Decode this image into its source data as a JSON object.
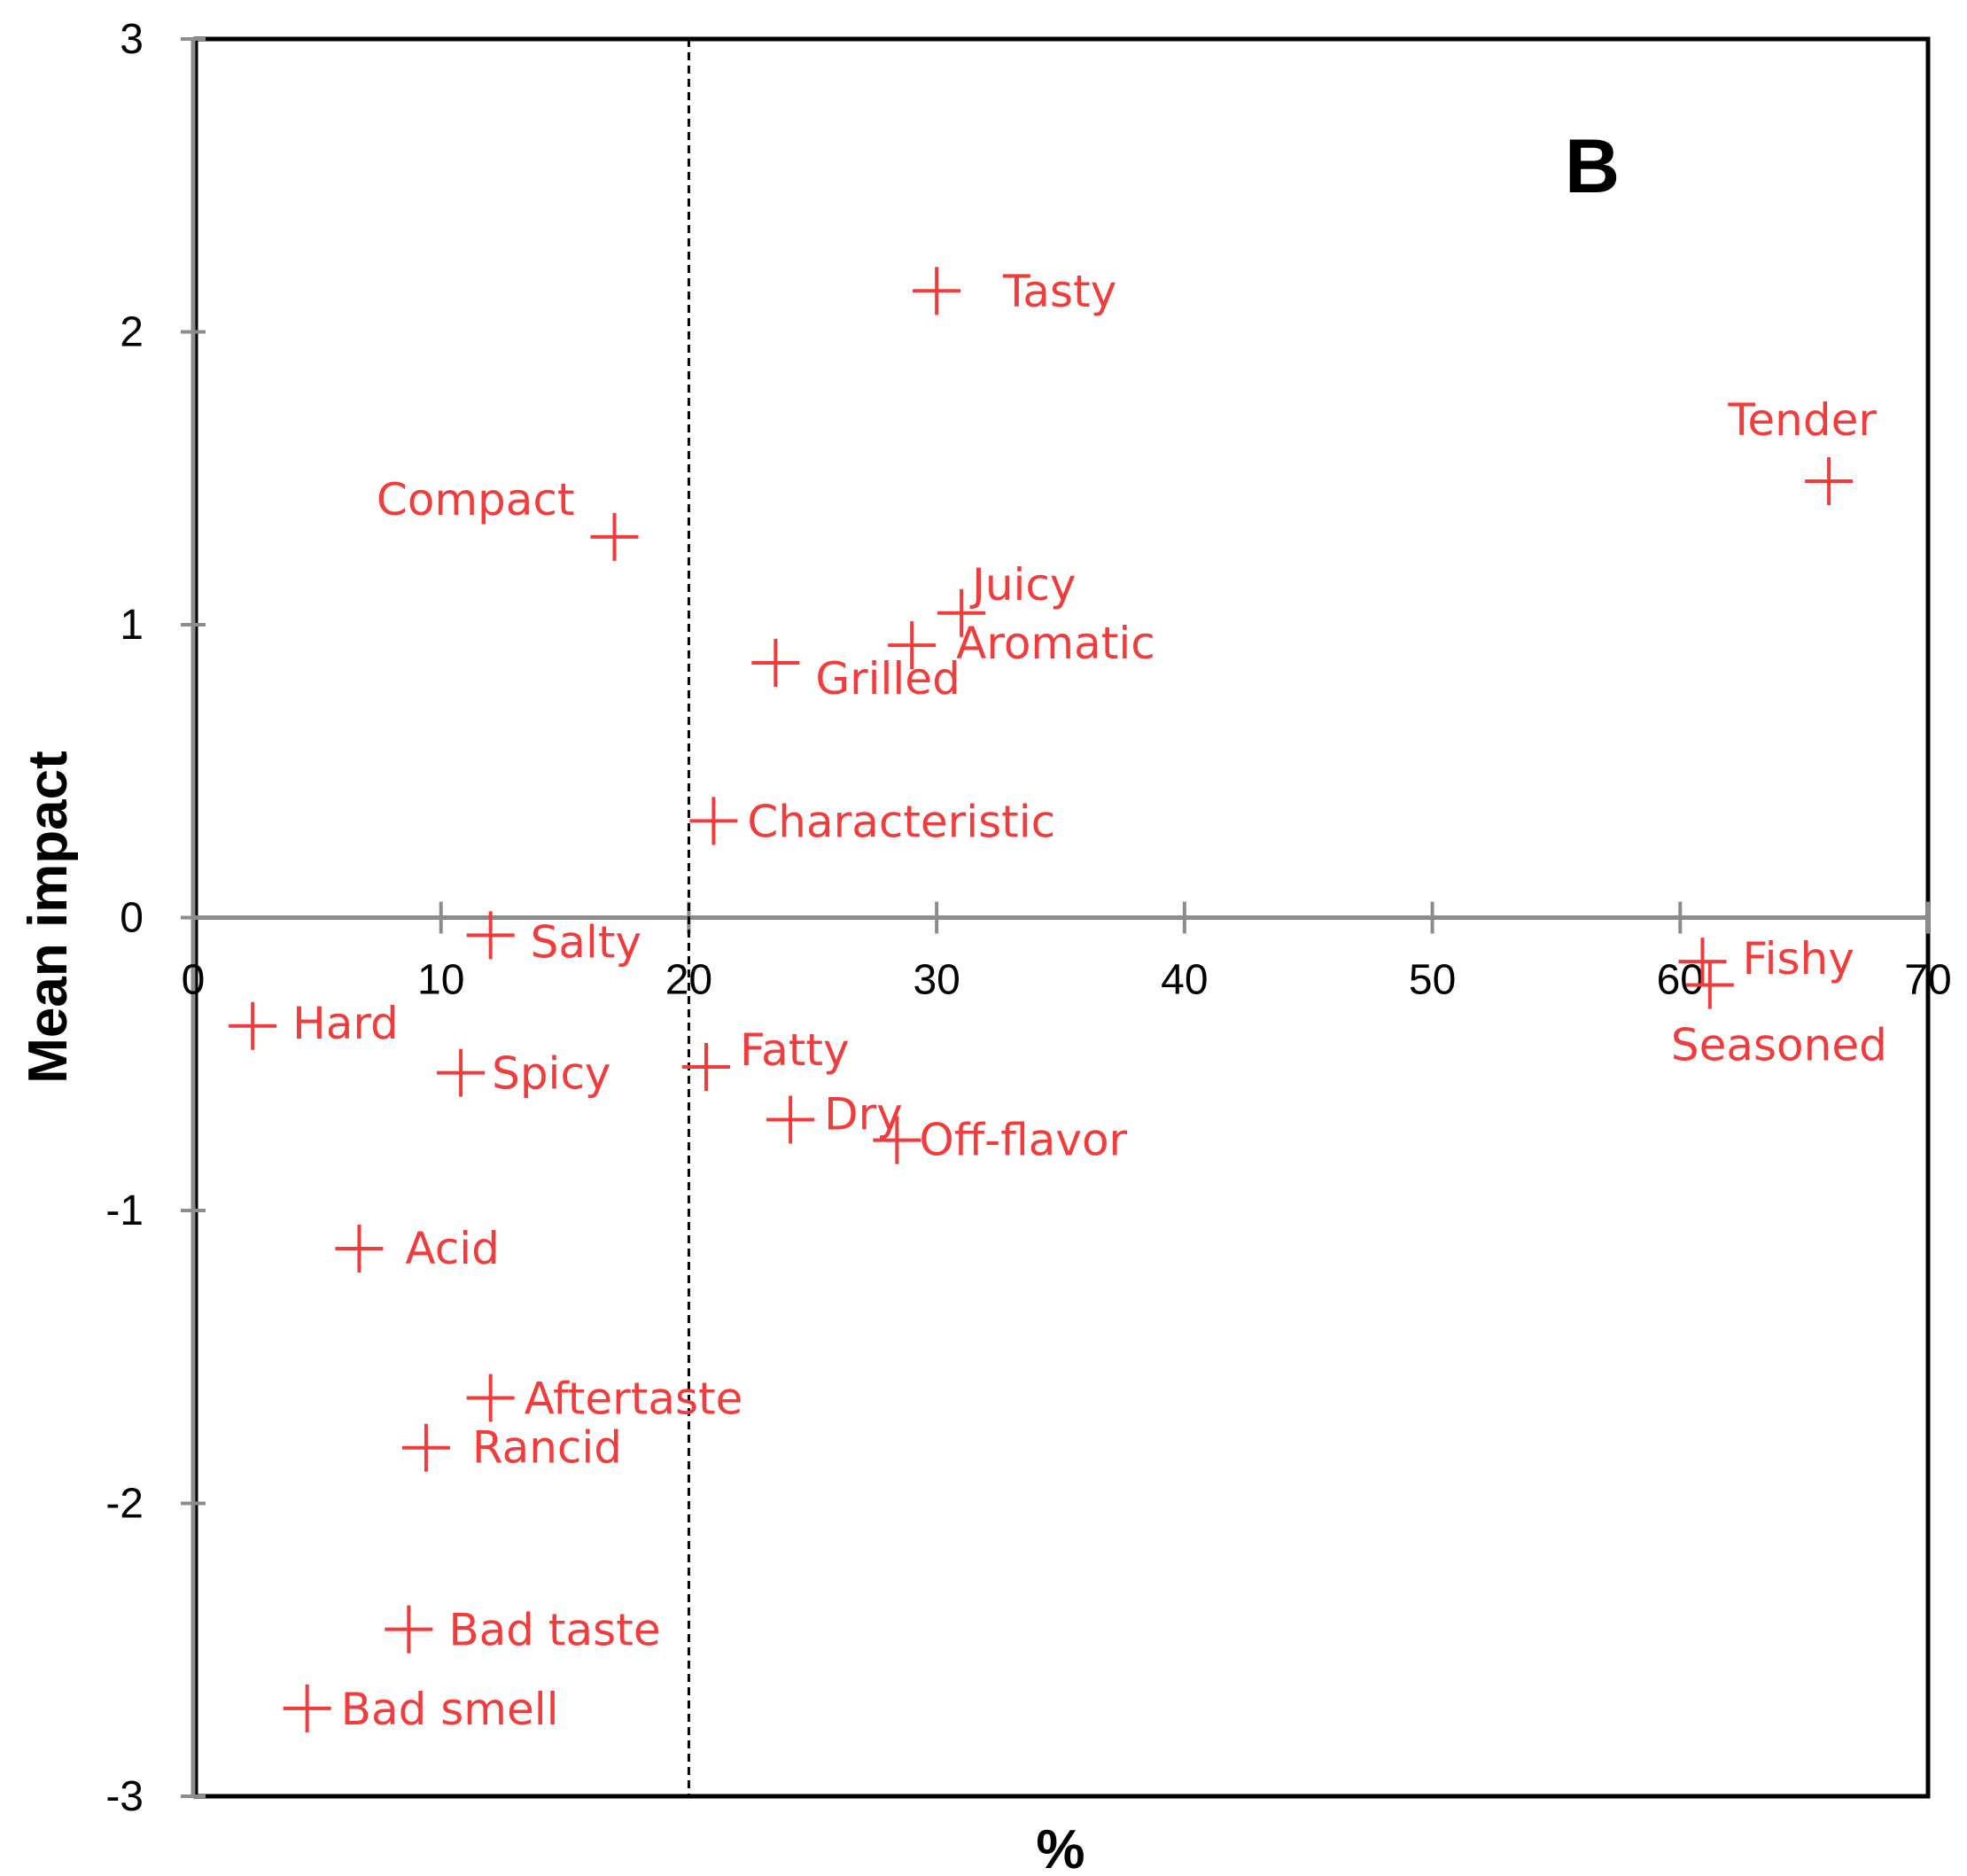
{
  "chart_data": {
    "type": "scatter",
    "panel_label": "B",
    "xlabel": "%",
    "ylabel": "Mean impact",
    "xlim": [
      0,
      70
    ],
    "ylim": [
      -3,
      3
    ],
    "x_ticks": [
      0,
      10,
      20,
      30,
      40,
      50,
      60,
      70
    ],
    "y_ticks": [
      3,
      2,
      1,
      0,
      -1,
      -2,
      -3
    ],
    "reference_line_x": 20,
    "marker_color": "#f03c3c",
    "points": [
      {
        "label": "Tasty",
        "x": 30.0,
        "y": 2.14
      },
      {
        "label": "Tender",
        "x": 66.0,
        "y": 1.49
      },
      {
        "label": "Compact",
        "x": 17.0,
        "y": 1.3
      },
      {
        "label": "Juicy",
        "x": 31.0,
        "y": 1.04
      },
      {
        "label": "Aromatic",
        "x": 29.0,
        "y": 0.93
      },
      {
        "label": "Grilled",
        "x": 23.5,
        "y": 0.87
      },
      {
        "label": "Characteristic",
        "x": 21.0,
        "y": 0.33
      },
      {
        "label": "Salty",
        "x": 12.0,
        "y": -0.06
      },
      {
        "label": "Fishy",
        "x": 60.9,
        "y": -0.15
      },
      {
        "label": "Seasoned",
        "x": 61.2,
        "y": -0.23
      },
      {
        "label": "Hard",
        "x": 2.4,
        "y": -0.37
      },
      {
        "label": "Spicy",
        "x": 10.8,
        "y": -0.53
      },
      {
        "label": "Fatty",
        "x": 20.7,
        "y": -0.51
      },
      {
        "label": "Dry",
        "x": 24.1,
        "y": -0.69
      },
      {
        "label": "Off-flavor",
        "x": 28.4,
        "y": -0.76
      },
      {
        "label": "Acid",
        "x": 6.7,
        "y": -1.13
      },
      {
        "label": "Aftertaste",
        "x": 12.0,
        "y": -1.64
      },
      {
        "label": "Rancid",
        "x": 9.4,
        "y": -1.81
      },
      {
        "label": "Bad taste",
        "x": 8.7,
        "y": -2.43
      },
      {
        "label": "Bad smell",
        "x": 4.6,
        "y": -2.7
      }
    ]
  }
}
